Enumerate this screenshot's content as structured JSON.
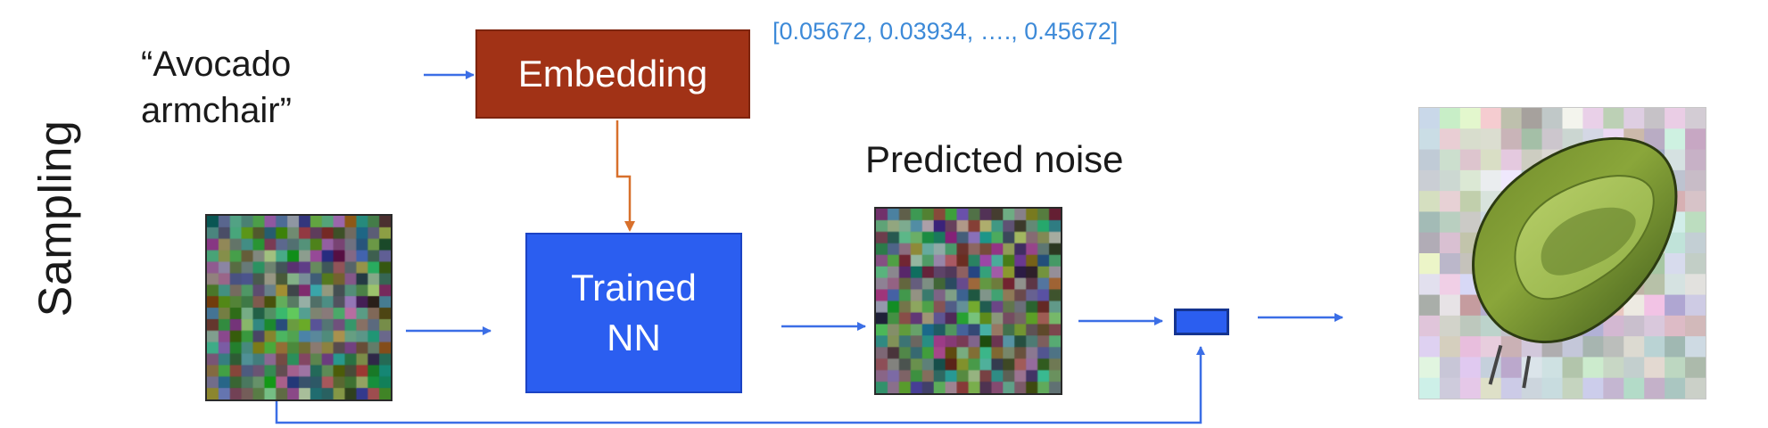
{
  "side_label": "Sampling",
  "prompt": {
    "line1": "“Avocado",
    "line2": "armchair”"
  },
  "embedding": {
    "label": "Embedding",
    "vector": "[0.05672, 0.03934, …., 0.45672]"
  },
  "network": {
    "line1": "Trained",
    "line2": "NN"
  },
  "predicted_noise": {
    "label": "Predicted noise"
  },
  "colors": {
    "embedding_box": "#a13216",
    "network_box": "#2b5ef0",
    "arrow_blue": "#3b6ee6",
    "arrow_orange": "#d8702c",
    "vector_text": "#3d8ad8"
  },
  "icons": {
    "input_noise": "noise-image",
    "predicted_noise": "noise-image",
    "output": "avocado-armchair-image"
  }
}
